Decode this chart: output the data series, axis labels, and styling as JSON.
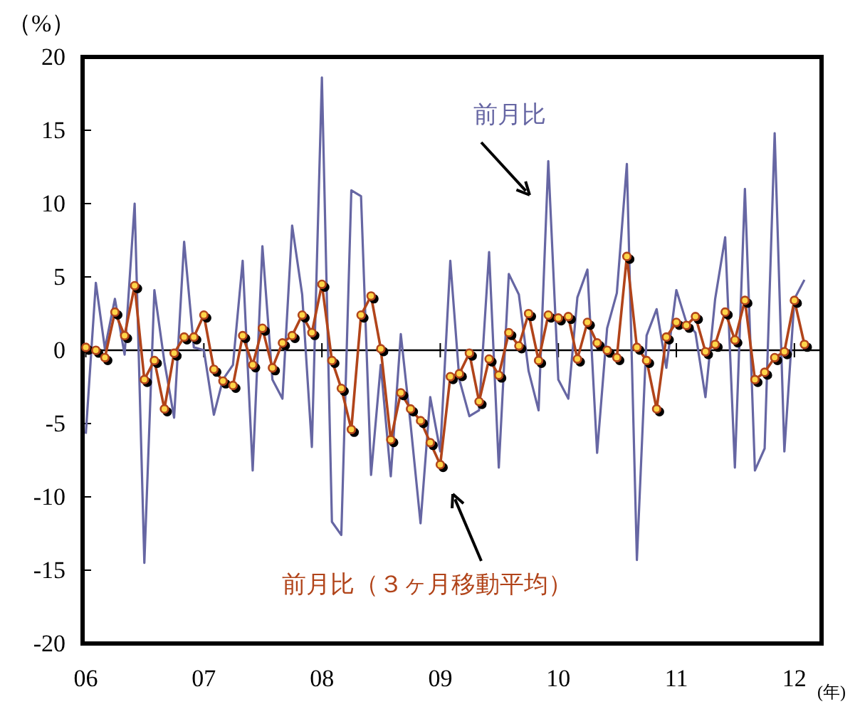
{
  "chart_data": {
    "type": "line",
    "ylabel": "（%）",
    "xlabel": "(年)",
    "x": [
      "2006-01",
      "2006-02",
      "2006-03",
      "2006-04",
      "2006-05",
      "2006-06",
      "2006-07",
      "2006-08",
      "2006-09",
      "2006-10",
      "2006-11",
      "2006-12",
      "2007-01",
      "2007-02",
      "2007-03",
      "2007-04",
      "2007-05",
      "2007-06",
      "2007-07",
      "2007-08",
      "2007-09",
      "2007-10",
      "2007-11",
      "2007-12",
      "2008-01",
      "2008-02",
      "2008-03",
      "2008-04",
      "2008-05",
      "2008-06",
      "2008-07",
      "2008-08",
      "2008-09",
      "2008-10",
      "2008-11",
      "2008-12",
      "2009-01",
      "2009-02",
      "2009-03",
      "2009-04",
      "2009-05",
      "2009-06",
      "2009-07",
      "2009-08",
      "2009-09",
      "2009-10",
      "2009-11",
      "2009-12",
      "2010-01",
      "2010-02",
      "2010-03",
      "2010-04",
      "2010-05",
      "2010-06",
      "2010-07",
      "2010-08",
      "2010-09",
      "2010-10",
      "2010-11",
      "2010-12",
      "2011-01",
      "2011-02",
      "2011-03",
      "2011-04",
      "2011-05",
      "2011-06",
      "2011-07",
      "2011-08",
      "2011-09",
      "2011-10",
      "2011-11",
      "2011-12",
      "2012-01",
      "2012-02"
    ],
    "xlim": [
      "2005-12-22",
      "2012-03-25"
    ],
    "xticks": [
      {
        "value": "2006-01",
        "label": "06"
      },
      {
        "value": "2007-01",
        "label": "07"
      },
      {
        "value": "2008-01",
        "label": "08"
      },
      {
        "value": "2009-01",
        "label": "09"
      },
      {
        "value": "2010-01",
        "label": "10"
      },
      {
        "value": "2011-01",
        "label": "11"
      },
      {
        "value": "2012-01",
        "label": "12"
      }
    ],
    "ylim": [
      -20,
      20
    ],
    "yticks": [
      -20,
      -15,
      -10,
      -5,
      0,
      5,
      10,
      15,
      20
    ],
    "series": [
      {
        "name": "前月比",
        "color": "#6666a3",
        "marker": "none",
        "values": [
          -5.7,
          4.6,
          0.1,
          3.5,
          -0.3,
          10.0,
          -14.5,
          4.1,
          -0.8,
          -4.6,
          7.4,
          0.2,
          0.0,
          -4.4,
          -2.0,
          -1.0,
          6.1,
          -8.2,
          7.1,
          -2.0,
          -3.3,
          8.5,
          3.8,
          -6.6,
          18.6,
          -11.7,
          -12.6,
          10.9,
          10.5,
          -8.5,
          -1.0,
          -8.6,
          1.1,
          -5.0,
          -11.8,
          -3.2,
          -6.9,
          6.1,
          -2.0,
          -4.5,
          -4.1,
          6.7,
          -8.0,
          5.2,
          3.8,
          -1.4,
          -4.1,
          12.9,
          -2.0,
          -3.3,
          3.6,
          5.5,
          -7.0,
          1.5,
          3.9,
          12.7,
          -14.3,
          1.0,
          2.8,
          -1.2,
          4.1,
          1.9,
          1.2,
          -3.2,
          3.5,
          7.7,
          -8.0,
          11.0,
          -8.2,
          -6.7,
          14.8,
          -6.9,
          3.5,
          4.8
        ]
      },
      {
        "name": "前月比（３ヶ月移動平均）",
        "color": "#b1441a",
        "marker": "circle",
        "values": [
          0.2,
          0.0,
          -0.5,
          2.6,
          1.0,
          4.4,
          -2.0,
          -0.7,
          -4.0,
          -0.2,
          0.9,
          0.9,
          2.4,
          -1.3,
          -2.1,
          -2.4,
          1.0,
          -1.0,
          1.5,
          -1.2,
          0.5,
          1.0,
          2.4,
          1.2,
          4.5,
          -0.7,
          -2.6,
          -5.4,
          2.4,
          3.7,
          0.1,
          -6.1,
          -2.9,
          -4.0,
          -4.8,
          -6.3,
          -7.8,
          -1.8,
          -1.6,
          -0.2,
          -3.5,
          -0.6,
          -1.7,
          1.2,
          0.3,
          2.5,
          -0.7,
          2.4,
          2.2,
          2.3,
          -0.6,
          1.9,
          0.5,
          0.0,
          -0.5,
          6.4,
          0.2,
          -0.7,
          -4.0,
          0.9,
          1.9,
          1.7,
          2.3,
          -0.1,
          0.4,
          2.6,
          0.7,
          3.4,
          -2.0,
          -1.5,
          -0.5,
          -0.1,
          3.4,
          0.4
        ]
      }
    ]
  }
}
